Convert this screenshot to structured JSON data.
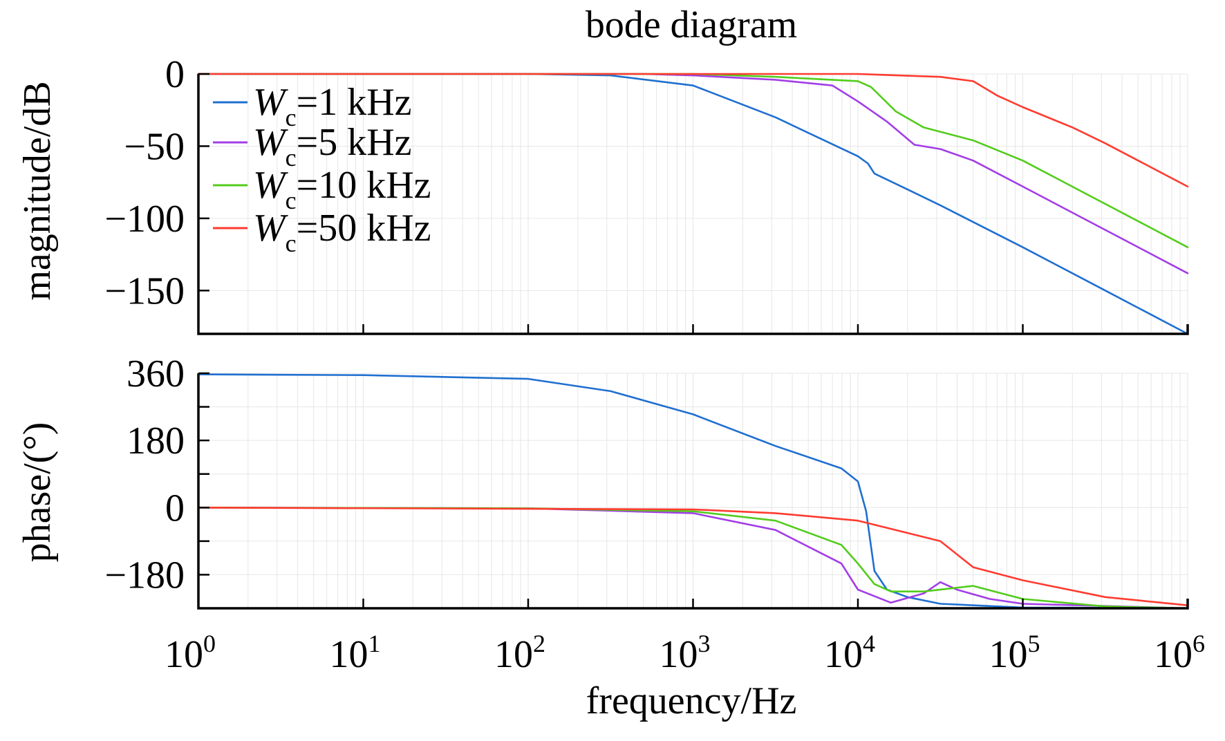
{
  "chart_data": {
    "type": "line",
    "title": "bode diagram",
    "xlabel": "frequency/Hz",
    "x_scale": "log",
    "xlim": [
      1,
      1000000
    ],
    "x_ticks": [
      {
        "value": 1,
        "base": "10",
        "exp": "0"
      },
      {
        "value": 10,
        "base": "10",
        "exp": "1"
      },
      {
        "value": 100,
        "base": "10",
        "exp": "2"
      },
      {
        "value": 1000,
        "base": "10",
        "exp": "3"
      },
      {
        "value": 10000,
        "base": "10",
        "exp": "4"
      },
      {
        "value": 100000,
        "base": "10",
        "exp": "5"
      },
      {
        "value": 1000000,
        "base": "10",
        "exp": "6"
      }
    ],
    "grid": true,
    "legend": {
      "location": "top-left",
      "entries": [
        {
          "prefix": "W",
          "subscript": "c",
          "text": "=1 kHz",
          "color": "#1f6fd0"
        },
        {
          "prefix": "W",
          "subscript": "c",
          "text": "=5 kHz",
          "color": "#a23de6"
        },
        {
          "prefix": "W",
          "subscript": "c",
          "text": "=10 kHz",
          "color": "#52cc1c"
        },
        {
          "prefix": "W",
          "subscript": "c",
          "text": "=50 kHz",
          "color": "#ff3b30"
        }
      ]
    },
    "panels": [
      {
        "name": "magnitude",
        "ylabel": "magnitude/dB",
        "ylim": [
          -180,
          0
        ],
        "y_ticks": [
          {
            "value": 0,
            "label": "0"
          },
          {
            "value": -50,
            "label": "−50"
          },
          {
            "value": -100,
            "label": "−100"
          },
          {
            "value": -150,
            "label": "−150"
          }
        ],
        "series": [
          {
            "color": "#1f6fd0",
            "points": [
              [
                1,
                0
              ],
              [
                100,
                0
              ],
              [
                316,
                -1
              ],
              [
                1000,
                -8
              ],
              [
                3162,
                -30
              ],
              [
                10000,
                -57
              ],
              [
                11500,
                -62
              ],
              [
                12600,
                -69
              ],
              [
                20000,
                -80
              ],
              [
                31623,
                -91
              ],
              [
                100000,
                -120
              ],
              [
                316228,
                -150
              ],
              [
                1000000,
                -180
              ]
            ]
          },
          {
            "color": "#a23de6",
            "points": [
              [
                1,
                0
              ],
              [
                500,
                0
              ],
              [
                1000,
                -1
              ],
              [
                3162,
                -4
              ],
              [
                7000,
                -8
              ],
              [
                10000,
                -19
              ],
              [
                15000,
                -33
              ],
              [
                22000,
                -49
              ],
              [
                31623,
                -52
              ],
              [
                50000,
                -60
              ],
              [
                100000,
                -78
              ],
              [
                316228,
                -108
              ],
              [
                1000000,
                -138
              ]
            ]
          },
          {
            "color": "#52cc1c",
            "points": [
              [
                1,
                0
              ],
              [
                1000,
                0
              ],
              [
                3162,
                -2
              ],
              [
                10000,
                -5
              ],
              [
                12000,
                -9
              ],
              [
                17000,
                -26
              ],
              [
                25000,
                -37
              ],
              [
                50000,
                -46
              ],
              [
                100000,
                -60
              ],
              [
                316228,
                -90
              ],
              [
                1000000,
                -120
              ]
            ]
          },
          {
            "color": "#ff3b30",
            "points": [
              [
                1,
                0
              ],
              [
                10000,
                0
              ],
              [
                31623,
                -2
              ],
              [
                50000,
                -5
              ],
              [
                70000,
                -15
              ],
              [
                100000,
                -23
              ],
              [
                200000,
                -37
              ],
              [
                316228,
                -48
              ],
              [
                1000000,
                -78
              ]
            ]
          }
        ]
      },
      {
        "name": "phase",
        "ylabel": "phase/(°)",
        "ylim": [
          -270,
          360
        ],
        "y_ticks": [
          {
            "value": 360,
            "label": "360"
          },
          {
            "value": 180,
            "label": "180"
          },
          {
            "value": 0,
            "label": "0"
          },
          {
            "value": -180,
            "label": "−180"
          }
        ],
        "y_minor_ticks": [
          270,
          90,
          -90,
          -270
        ],
        "series": [
          {
            "color": "#1f6fd0",
            "points": [
              [
                1,
                357
              ],
              [
                10,
                355
              ],
              [
                100,
                345
              ],
              [
                316,
                312
              ],
              [
                1000,
                250
              ],
              [
                3162,
                165
              ],
              [
                7943,
                105
              ],
              [
                10000,
                70
              ],
              [
                11220,
                -10
              ],
              [
                12600,
                -170
              ],
              [
                15000,
                -220
              ],
              [
                20000,
                -240
              ],
              [
                31623,
                -258
              ],
              [
                100000,
                -268
              ],
              [
                1000000,
                -270
              ]
            ]
          },
          {
            "color": "#a23de6",
            "points": [
              [
                1,
                0
              ],
              [
                100,
                -2
              ],
              [
                1000,
                -15
              ],
              [
                3162,
                -60
              ],
              [
                7943,
                -150
              ],
              [
                10000,
                -220
              ],
              [
                15849,
                -255
              ],
              [
                25119,
                -230
              ],
              [
                31623,
                -200
              ],
              [
                39811,
                -220
              ],
              [
                63096,
                -245
              ],
              [
                100000,
                -258
              ],
              [
                1000000,
                -270
              ]
            ]
          },
          {
            "color": "#52cc1c",
            "points": [
              [
                1,
                0
              ],
              [
                100,
                -2
              ],
              [
                1000,
                -10
              ],
              [
                3162,
                -35
              ],
              [
                7943,
                -100
              ],
              [
                10000,
                -150
              ],
              [
                12589,
                -205
              ],
              [
                15849,
                -225
              ],
              [
                25119,
                -225
              ],
              [
                50000,
                -210
              ],
              [
                100000,
                -245
              ],
              [
                316228,
                -265
              ],
              [
                1000000,
                -270
              ]
            ]
          },
          {
            "color": "#ff3b30",
            "points": [
              [
                1,
                0
              ],
              [
                1000,
                -5
              ],
              [
                3162,
                -15
              ],
              [
                10000,
                -35
              ],
              [
                31623,
                -90
              ],
              [
                50000,
                -160
              ],
              [
                100000,
                -195
              ],
              [
                316228,
                -240
              ],
              [
                1000000,
                -262
              ]
            ]
          }
        ]
      }
    ]
  }
}
